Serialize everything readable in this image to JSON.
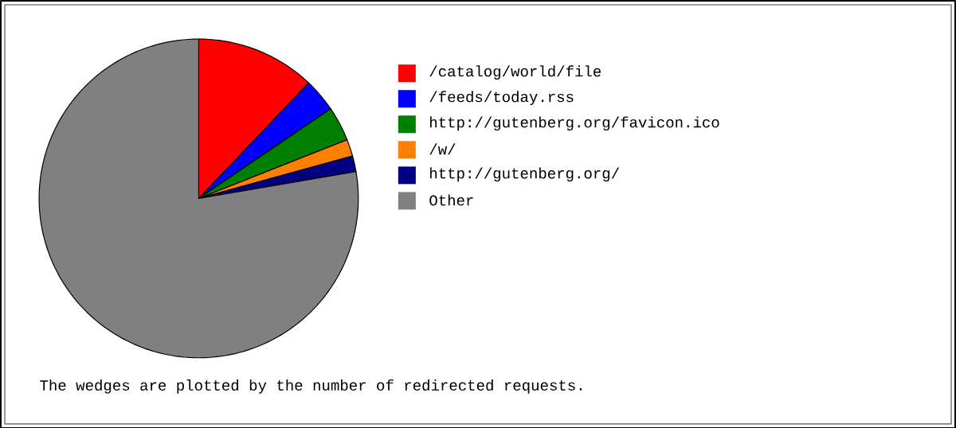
{
  "chart_data": {
    "type": "pie",
    "categories": [
      "/catalog/world/file",
      "/feeds/today.rss",
      "http://gutenberg.org/favicon.ico",
      "/w/",
      "http://gutenberg.org/",
      "Other"
    ],
    "values": [
      12.1,
      3.4,
      3.5,
      1.7,
      1.6,
      77.7
    ],
    "colors": [
      "#ff0000",
      "#0000ff",
      "#008000",
      "#ff8000",
      "#000080",
      "#808080"
    ],
    "legend": "right",
    "annotations": [
      "The wedges are plotted by the number of redirected requests."
    ]
  }
}
